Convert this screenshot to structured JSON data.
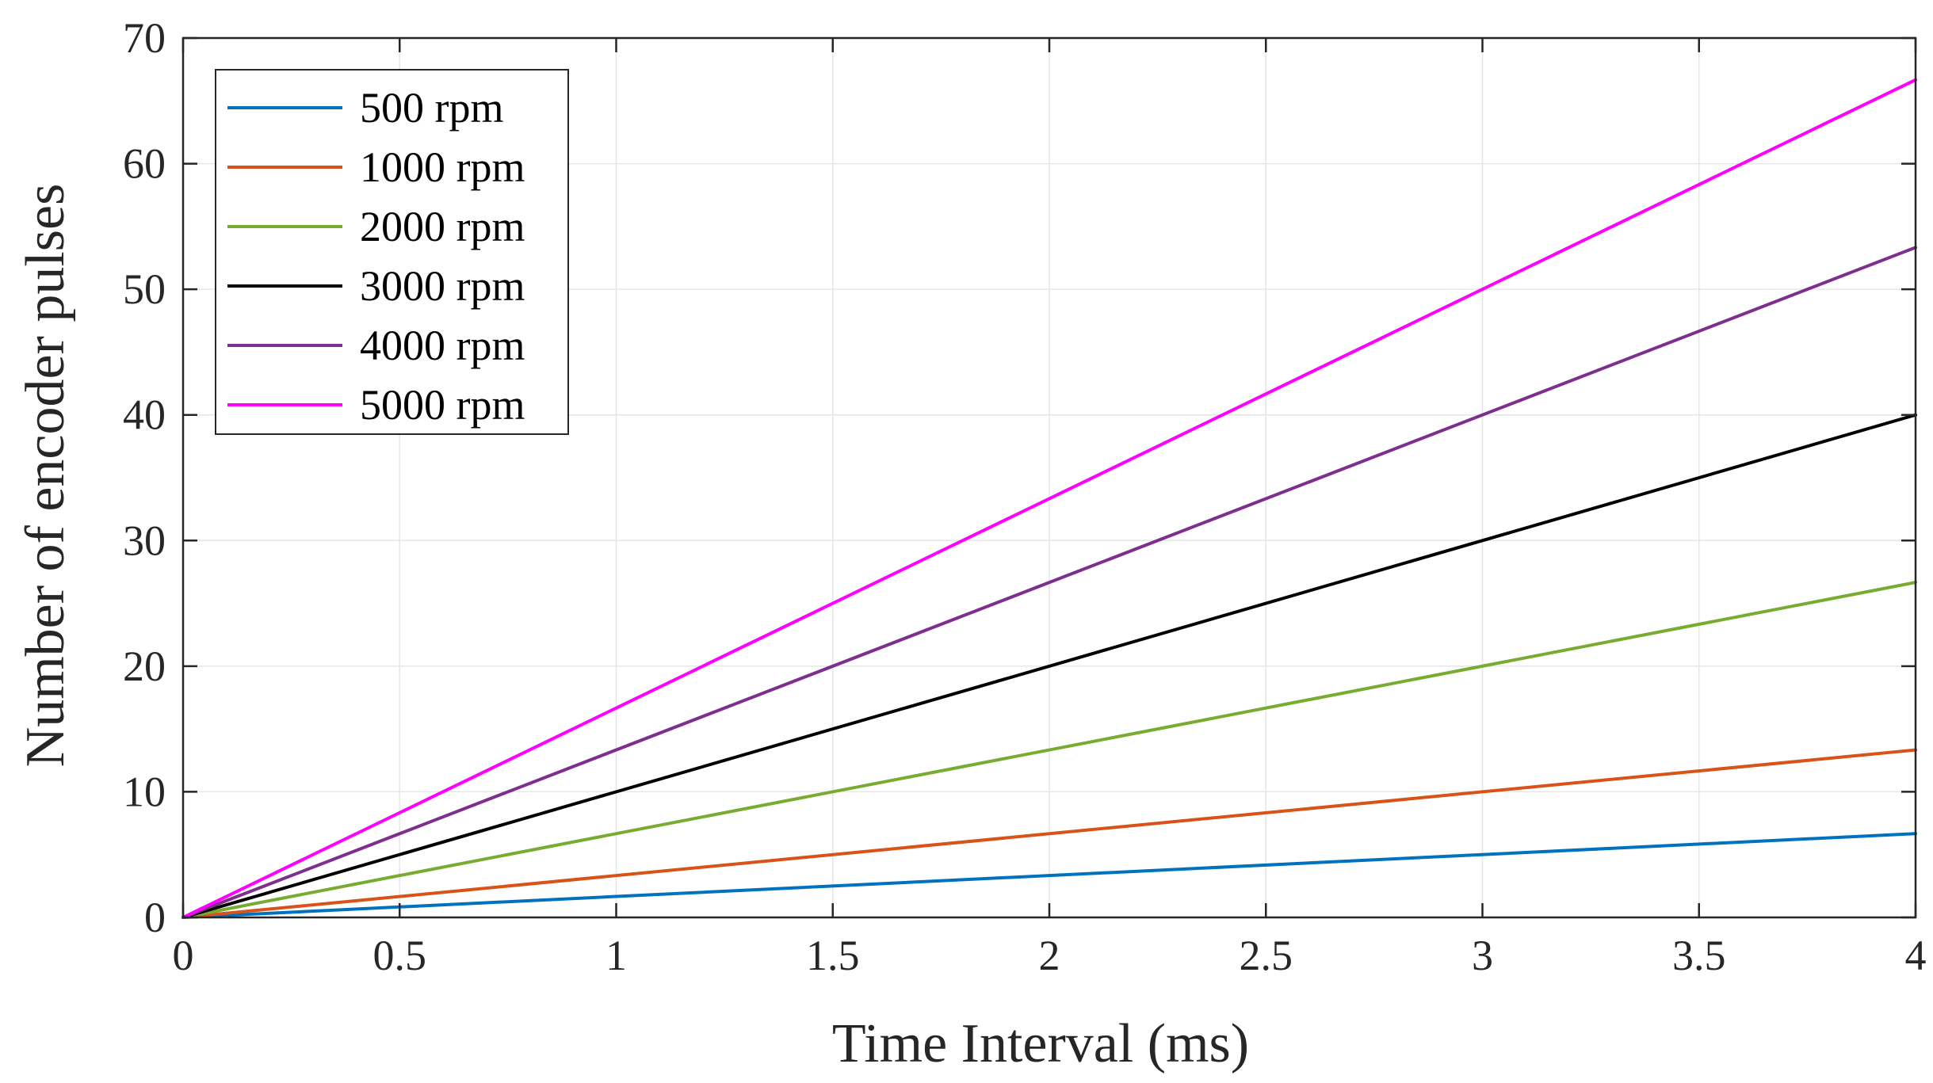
{
  "chart_data": {
    "type": "line",
    "title": "",
    "xlabel": "Time Interval (ms)",
    "ylabel": "Number of encoder pulses",
    "xlim": [
      0,
      4
    ],
    "ylim": [
      0,
      70
    ],
    "grid": true,
    "legend_position": "top-left",
    "x_ticks": [
      0,
      0.5,
      1,
      1.5,
      2,
      2.5,
      3,
      3.5,
      4
    ],
    "x_tick_labels": [
      "0",
      "0.5",
      "1",
      "1.5",
      "2",
      "2.5",
      "3",
      "3.5",
      "4"
    ],
    "y_ticks": [
      0,
      10,
      20,
      30,
      40,
      50,
      60,
      70
    ],
    "y_tick_labels": [
      "0",
      "10",
      "20",
      "30",
      "40",
      "50",
      "60",
      "70"
    ],
    "x": [
      0,
      4
    ],
    "series": [
      {
        "name": "500 rpm",
        "color": "#0072BD",
        "values": [
          0,
          6.67
        ]
      },
      {
        "name": "1000 rpm",
        "color": "#D95319",
        "values": [
          0,
          13.33
        ]
      },
      {
        "name": "2000 rpm",
        "color": "#77AC30",
        "values": [
          0,
          26.67
        ]
      },
      {
        "name": "3000 rpm",
        "color": "#000000",
        "values": [
          0,
          40
        ]
      },
      {
        "name": "4000 rpm",
        "color": "#7E2F8E",
        "values": [
          0,
          53.33
        ]
      },
      {
        "name": "5000 rpm",
        "color": "#FF00FF",
        "values": [
          0,
          66.67
        ]
      }
    ]
  }
}
